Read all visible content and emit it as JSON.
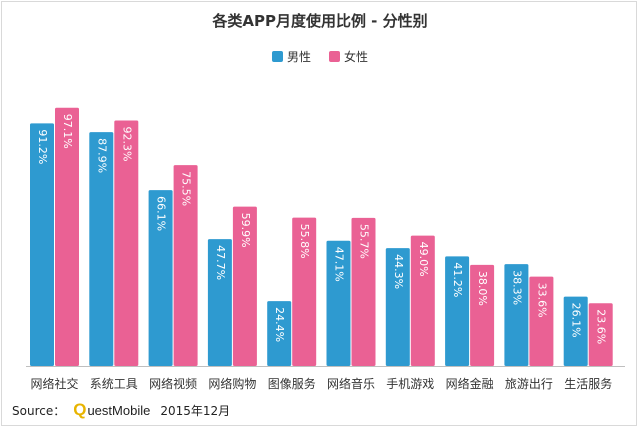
{
  "chart_data": {
    "type": "bar",
    "title": "各类APP月度使用比例 - 分性别",
    "categories": [
      "网络社交",
      "系统工具",
      "网络视频",
      "网络购物",
      "图像服务",
      "网络音乐",
      "手机游戏",
      "网络金融",
      "旅游出行",
      "生活服务"
    ],
    "series": [
      {
        "name": "男性",
        "color": "#2e9ad0",
        "values": [
          91.2,
          87.9,
          66.1,
          47.7,
          24.4,
          47.1,
          44.3,
          41.2,
          38.3,
          26.1
        ]
      },
      {
        "name": "女性",
        "color": "#ea6194",
        "values": [
          97.1,
          92.3,
          75.5,
          59.9,
          55.8,
          55.7,
          49.0,
          38.0,
          33.6,
          23.6
        ]
      }
    ],
    "value_suffix": "%",
    "ylim": [
      0,
      100
    ],
    "legend_position": "top-center",
    "grid": false
  },
  "source": {
    "label": "Source：",
    "brand_letter": "Q",
    "brand_rest": "uestMobile",
    "date": "2015年12月"
  }
}
